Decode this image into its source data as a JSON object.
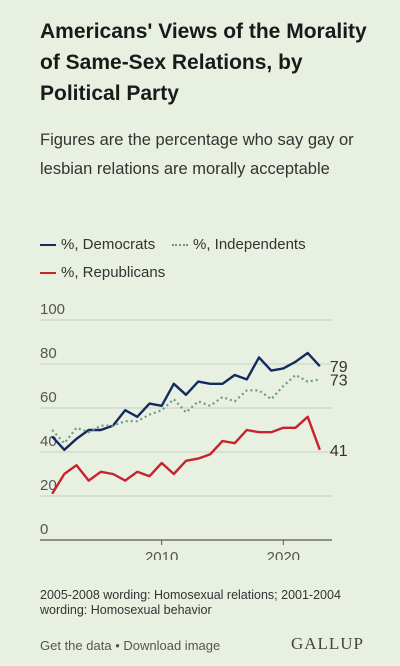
{
  "header": {
    "title": "Americans' Views of the Morality of Same-Sex Relations, by Political Party",
    "subtitle": "Figures are the percentage who say gay or lesbian relations are morally acceptable"
  },
  "legend": {
    "democrats": "%, Democrats",
    "independents": "%, Independents",
    "republicans": "%, Republicans"
  },
  "colors": {
    "democrats": "#132a5e",
    "independents": "#6e9a8a",
    "republicans": "#c8222c",
    "background": "#e8f0e2"
  },
  "chart_data": {
    "type": "line",
    "title": "Americans' Views of the Morality of Same-Sex Relations, by Political Party",
    "subtitle": "Figures are the percentage who say gay or lesbian relations are morally acceptable",
    "xlabel": "",
    "ylabel": "",
    "x": [
      2001,
      2002,
      2003,
      2004,
      2005,
      2006,
      2007,
      2008,
      2009,
      2010,
      2011,
      2012,
      2013,
      2014,
      2015,
      2016,
      2017,
      2018,
      2019,
      2020,
      2021,
      2022,
      2023
    ],
    "xlim": [
      2000,
      2024
    ],
    "ylim": [
      0,
      100
    ],
    "y_ticks": [
      0,
      20,
      40,
      60,
      80,
      100
    ],
    "x_ticks": [
      2010,
      2020
    ],
    "grid": true,
    "legend_position": "top-left",
    "series": [
      {
        "name": "%, Democrats",
        "values": [
          47,
          41,
          46,
          50,
          50,
          52,
          59,
          56,
          62,
          61,
          71,
          66,
          72,
          71,
          71,
          75,
          73,
          83,
          77,
          78,
          81,
          85,
          79
        ],
        "end_label": "79"
      },
      {
        "name": "%, Independents",
        "values": [
          50,
          44,
          51,
          49,
          52,
          52,
          54,
          54,
          57,
          59,
          64,
          58,
          63,
          61,
          65,
          63,
          68,
          68,
          64,
          70,
          75,
          72,
          73
        ],
        "end_label": "73"
      },
      {
        "name": "%, Republicans",
        "values": [
          21,
          30,
          34,
          27,
          31,
          30,
          27,
          31,
          29,
          35,
          30,
          36,
          37,
          39,
          45,
          44,
          50,
          49,
          49,
          51,
          51,
          56,
          41
        ],
        "end_label": "41"
      }
    ]
  },
  "note": "2005-2008 wording: Homosexual relations; 2001-2004 wording: Homosexual behavior",
  "footer": {
    "get_data": "Get the data",
    "separator": "•",
    "download": "Download image"
  },
  "brand": "GALLUP"
}
